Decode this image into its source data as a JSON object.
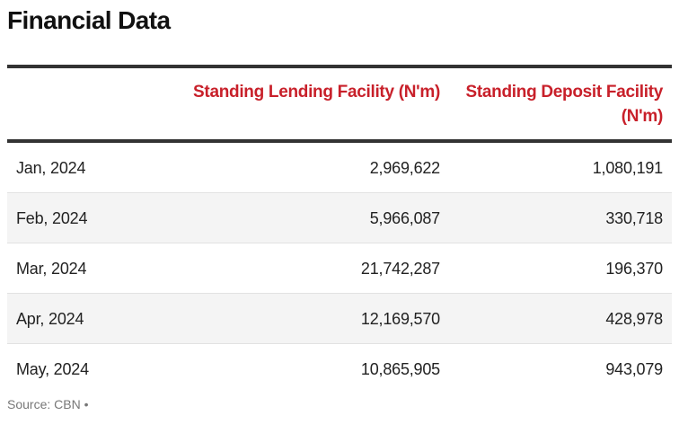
{
  "title": "Financial Data",
  "source": "Source: CBN •",
  "colors": {
    "header_text": "#c8202a",
    "rule": "#333333",
    "stripe": "#f4f4f4",
    "body_text": "#222222",
    "source_text": "#777777"
  },
  "chart_data": {
    "type": "table",
    "title": "Financial Data",
    "columns": [
      "",
      "Standing Lending Facility (N'm)",
      "Standing Deposit Facility (N'm)"
    ],
    "rows": [
      {
        "date": "Jan, 2024",
        "slf": "2,969,622",
        "sdf": "1,080,191"
      },
      {
        "date": "Feb, 2024",
        "slf": "5,966,087",
        "sdf": "330,718"
      },
      {
        "date": "Mar, 2024",
        "slf": "21,742,287",
        "sdf": "196,370"
      },
      {
        "date": "Apr, 2024",
        "slf": "12,169,570",
        "sdf": "428,978"
      },
      {
        "date": "May, 2024",
        "slf": "10,865,905",
        "sdf": "943,079"
      }
    ],
    "series": [
      {
        "name": "Standing Lending Facility (N'm)",
        "values": [
          2969622,
          5966087,
          21742287,
          12169570,
          10865905
        ]
      },
      {
        "name": "Standing Deposit Facility (N'm)",
        "values": [
          1080191,
          330718,
          196370,
          428978,
          943079
        ]
      }
    ],
    "categories": [
      "Jan, 2024",
      "Feb, 2024",
      "Mar, 2024",
      "Apr, 2024",
      "May, 2024"
    ]
  }
}
